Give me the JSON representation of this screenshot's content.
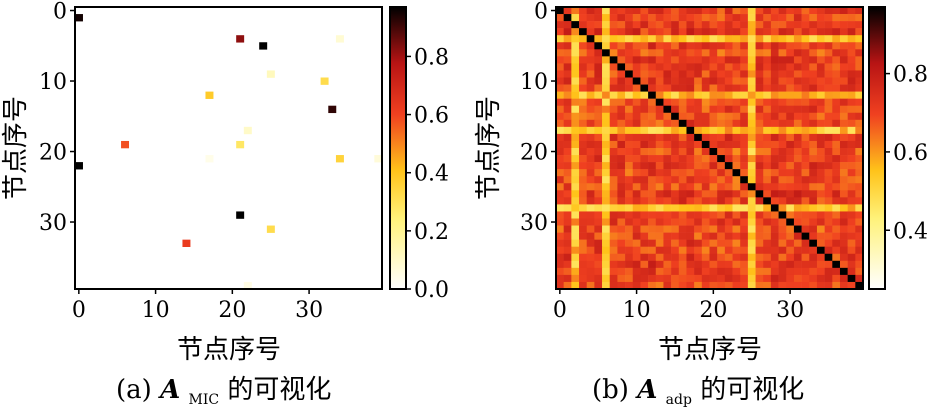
{
  "chart_data": [
    {
      "type": "heatmap",
      "caption": {
        "prefix": "(a) ",
        "symbol": "A",
        "subscript": "MIC",
        "suffix": "的可视化"
      },
      "xlabel": "节点序号",
      "ylabel": "节点序号",
      "n": 40,
      "xticks": [
        0,
        10,
        20,
        30
      ],
      "yticks": [
        0,
        10,
        20,
        30
      ],
      "colorbar": {
        "ticks": [
          0.0,
          0.2,
          0.4,
          0.6,
          0.8
        ],
        "range": [
          0,
          0.97
        ]
      },
      "colormap": "afmhot_r",
      "background_value": 0,
      "cells": [
        {
          "row": 1,
          "col": 0,
          "value": 0.95
        },
        {
          "row": 4,
          "col": 21,
          "value": 0.82
        },
        {
          "row": 4,
          "col": 34,
          "value": 0.08
        },
        {
          "row": 5,
          "col": 24,
          "value": 0.97
        },
        {
          "row": 9,
          "col": 25,
          "value": 0.12
        },
        {
          "row": 10,
          "col": 32,
          "value": 0.32
        },
        {
          "row": 12,
          "col": 17,
          "value": 0.38
        },
        {
          "row": 14,
          "col": 33,
          "value": 0.92
        },
        {
          "row": 17,
          "col": 22,
          "value": 0.1
        },
        {
          "row": 19,
          "col": 6,
          "value": 0.58
        },
        {
          "row": 19,
          "col": 21,
          "value": 0.28
        },
        {
          "row": 21,
          "col": 17,
          "value": 0.04
        },
        {
          "row": 21,
          "col": 34,
          "value": 0.35
        },
        {
          "row": 21,
          "col": 39,
          "value": 0.07
        },
        {
          "row": 22,
          "col": 0,
          "value": 0.97
        },
        {
          "row": 29,
          "col": 21,
          "value": 0.97
        },
        {
          "row": 31,
          "col": 25,
          "value": 0.32
        },
        {
          "row": 33,
          "col": 14,
          "value": 0.62
        },
        {
          "row": 39,
          "col": 22,
          "value": 0.05
        }
      ]
    },
    {
      "type": "heatmap",
      "caption": {
        "prefix": "(b) ",
        "symbol": "A",
        "subscript": "adp",
        "suffix": "的可视化"
      },
      "xlabel": "节点序号",
      "ylabel": "节点序号",
      "n": 40,
      "xticks": [
        0,
        10,
        20,
        30
      ],
      "yticks": [
        0,
        10,
        20,
        30
      ],
      "colorbar": {
        "ticks": [
          0.4,
          0.6,
          0.8
        ],
        "range": [
          0.25,
          0.97
        ]
      },
      "colormap": "afmhot_r",
      "diagonal_value": 0.97,
      "value_range_offdiag": [
        0.3,
        0.72
      ],
      "typical_value": 0.62,
      "note_cells": "off-diagonal values mostly 0.55–0.70 (red/orange) with bright yellow/white stripes at columns 2, 6, 25 and rows 4, 12, 17, 28"
    }
  ]
}
